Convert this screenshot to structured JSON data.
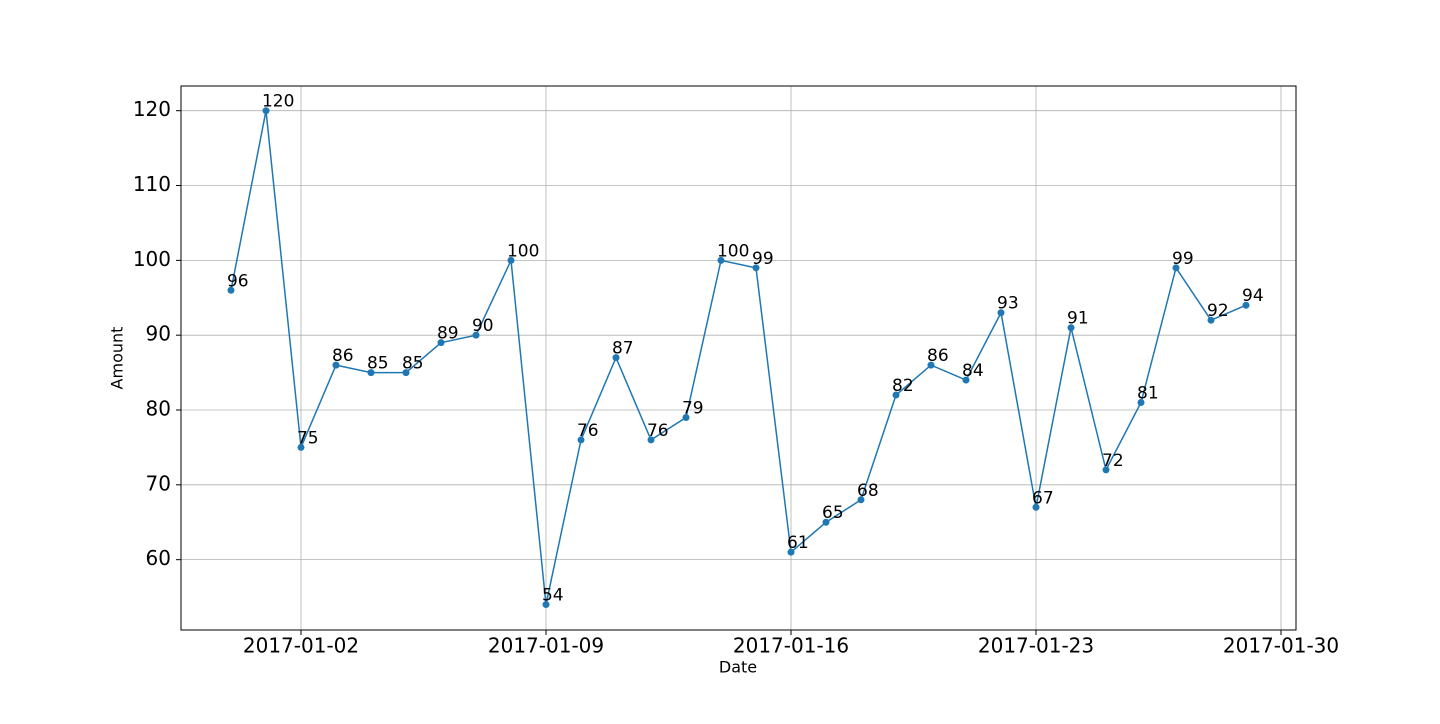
{
  "chart_data": {
    "type": "line",
    "x_label": "Date",
    "y_label": "Amount",
    "x": [
      "2016-12-31",
      "2017-01-01",
      "2017-01-02",
      "2017-01-03",
      "2017-01-04",
      "2017-01-05",
      "2017-01-06",
      "2017-01-07",
      "2017-01-08",
      "2017-01-09",
      "2017-01-10",
      "2017-01-11",
      "2017-01-12",
      "2017-01-13",
      "2017-01-14",
      "2017-01-15",
      "2017-01-16",
      "2017-01-17",
      "2017-01-18",
      "2017-01-19",
      "2017-01-20",
      "2017-01-21",
      "2017-01-22",
      "2017-01-23",
      "2017-01-24",
      "2017-01-25",
      "2017-01-26",
      "2017-01-27",
      "2017-01-28",
      "2017-01-29"
    ],
    "series": [
      {
        "name": "Amount",
        "color": "#1f77b4",
        "values": [
          96,
          120,
          75,
          86,
          85,
          85,
          89,
          90,
          100,
          54,
          76,
          87,
          76,
          79,
          100,
          99,
          61,
          65,
          68,
          82,
          86,
          84,
          93,
          67,
          91,
          72,
          81,
          99,
          92,
          94
        ]
      }
    ],
    "xlim": [
      "2016-12-29T13:43:00Z",
      "2017-01-30T10:17:00Z"
    ],
    "xticks": [
      "2017-01-02",
      "2017-01-09",
      "2017-01-16",
      "2017-01-23",
      "2017-01-30"
    ],
    "ylim": [
      50.6,
      123.3
    ],
    "yticks": [
      60,
      70,
      80,
      90,
      100,
      110,
      120
    ],
    "grid": true
  }
}
